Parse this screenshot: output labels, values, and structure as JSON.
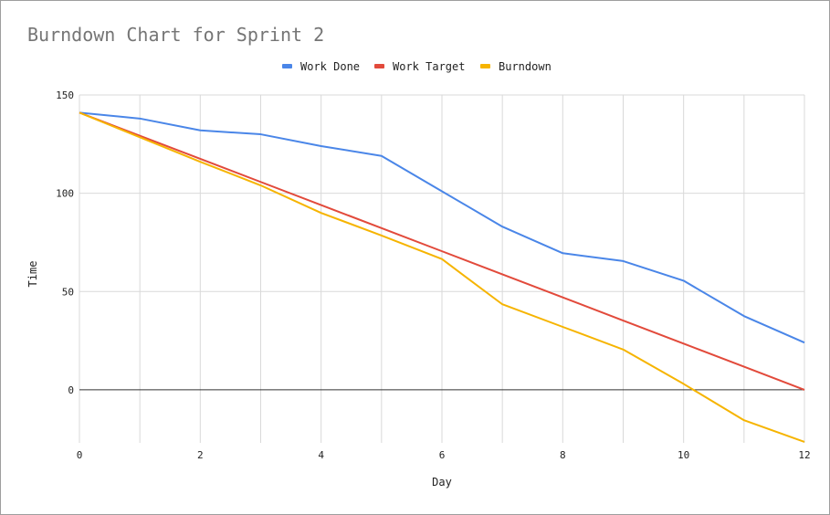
{
  "chart_data": {
    "type": "line",
    "title": "Burndown Chart for Sprint 2",
    "xlabel": "Day",
    "ylabel": "Time",
    "xlim": [
      0,
      12
    ],
    "ylim": [
      -27,
      150
    ],
    "x_ticks": [
      "0",
      "2",
      "4",
      "6",
      "8",
      "10",
      "12"
    ],
    "y_ticks": [
      "150",
      "100",
      "50",
      "0"
    ],
    "grid": true,
    "legend_position": "top",
    "x": [
      0,
      1,
      2,
      3,
      4,
      5,
      6,
      7,
      8,
      9,
      10,
      11,
      12
    ],
    "series": [
      {
        "name": "Work Done",
        "color": "#4a86e8",
        "values": [
          141,
          138,
          132,
          130,
          124,
          119,
          101,
          83,
          69.5,
          65.5,
          55.5,
          37.5,
          24
        ]
      },
      {
        "name": "Work Target",
        "color": "#e24a3b",
        "values": [
          141,
          129.25,
          117.5,
          105.75,
          94,
          82.25,
          70.5,
          58.75,
          47,
          35.25,
          23.5,
          11.75,
          0
        ]
      },
      {
        "name": "Burndown",
        "color": "#f6b400",
        "values": [
          141,
          128.5,
          116,
          104,
          90,
          78.5,
          66.5,
          43.5,
          32,
          20.5,
          3,
          -15.5,
          -26.5
        ]
      }
    ]
  }
}
